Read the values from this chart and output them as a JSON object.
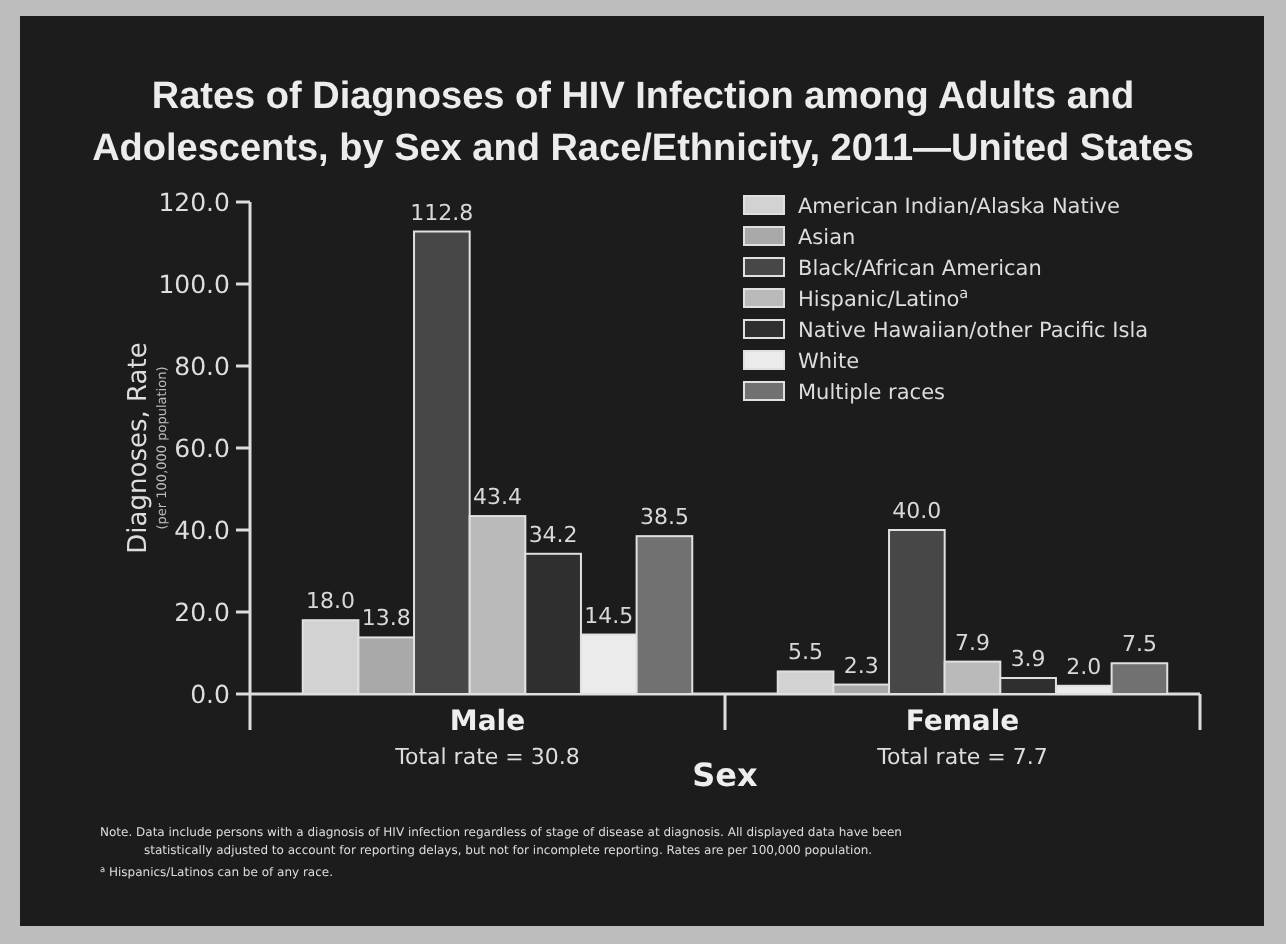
{
  "chart_data": {
    "type": "bar",
    "title": "Rates of Diagnoses of HIV Infection among Adults and\nAdolescents, by Sex and Race/Ethnicity, 2011—United States",
    "xlabel": "Sex",
    "ylabel": "Diagnoses, Rate\n(per 100,000 population)",
    "categories": [
      "Male",
      "Female"
    ],
    "series": [
      {
        "name": "American Indian/Alaska Native",
        "color": "#d2d2d2",
        "values": [
          18.0,
          5.5
        ],
        "value_labels": [
          "18.0",
          "5.5"
        ]
      },
      {
        "name": "Asian",
        "color": "#a9a9a9",
        "values": [
          13.8,
          2.3
        ],
        "value_labels": [
          "13.8",
          "2.3"
        ]
      },
      {
        "name": "Black/African American",
        "color": "#474747",
        "values": [
          112.8,
          40.0
        ],
        "value_labels": [
          "112.8",
          "40.0"
        ]
      },
      {
        "name": "Hispanic/Latino$^{a}$",
        "color": "#bababa",
        "values": [
          43.4,
          7.9
        ],
        "value_labels": [
          "43.4",
          "7.9"
        ]
      },
      {
        "name": "Native Hawaiian/other Pacific Isla",
        "color": "#2f2f2f",
        "values": [
          34.2,
          3.9
        ],
        "value_labels": [
          "34.2",
          "3.9"
        ]
      },
      {
        "name": "White",
        "color": "#ebebeb",
        "values": [
          14.5,
          2.0
        ],
        "value_labels": [
          "14.5",
          "2.0"
        ]
      },
      {
        "name": "Multiple races",
        "color": "#717171",
        "values": [
          38.5,
          7.5
        ],
        "value_labels": [
          "38.5",
          "7.5"
        ]
      }
    ],
    "ylim": [
      0,
      120
    ],
    "yticks": [
      {
        "value": 0,
        "label": "0.0"
      },
      {
        "value": 20,
        "label": "20.0"
      },
      {
        "value": 40,
        "label": "40.0"
      },
      {
        "value": 60,
        "label": "60.0"
      },
      {
        "value": 80,
        "label": "80.0"
      },
      {
        "value": 100,
        "label": "100.0"
      },
      {
        "value": 120,
        "label": "120.0"
      }
    ],
    "legend": "top right",
    "grid": false,
    "annotations": [
      "Total rate = 30.8",
      "Total rate = 7.7",
      "Note. Data include persons with a diagnosis of HIV infection regardless of stage of disease at diagnosis. All displayed data have been\nstatistically adjusted to account for reporting delays, but not for incomplete reporting. Rates are per 100,000 population.",
      "$^{a}$ Hispanics/Latinos can be of any race."
    ]
  }
}
